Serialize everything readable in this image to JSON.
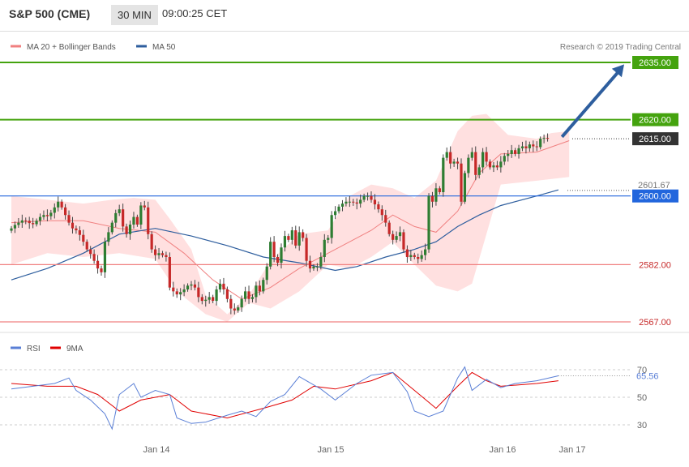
{
  "header": {
    "title": "S&P 500 (CME)",
    "interval": "30 MIN",
    "time": "09:00:25 CET"
  },
  "credit": "Research © 2019 Trading Central",
  "colors": {
    "bollinger_line": "#f08080",
    "bollinger_fill": "#ffe0e0",
    "ma50": "#2e5e9e",
    "candle_up": "#2e7d32",
    "candle_down": "#c62828",
    "resistance": "#44a30e",
    "pivot": "#2266dd",
    "support": "#f08080",
    "arrow": "#2e5e9e",
    "rsi": "#5a7fd6",
    "rsi_ma": "#e00000"
  },
  "chart_data": [
    {
      "type": "candlestick",
      "legend": [
        {
          "name": "MA 20 + Bollinger Bands",
          "color": "#f08080"
        },
        {
          "name": "MA 50",
          "color": "#2e5e9e"
        }
      ],
      "x_labels": [
        "Jan 14",
        "Jan 15",
        "Jan 16",
        "Jan 17"
      ],
      "ylim": [
        2565,
        2638
      ],
      "levels": [
        {
          "value": 2635.0,
          "label": "2635.00",
          "kind": "resistance"
        },
        {
          "value": 2620.0,
          "label": "2620.00",
          "kind": "resistance"
        },
        {
          "value": 2615.0,
          "label": "2615.00",
          "kind": "last"
        },
        {
          "value": 2601.67,
          "label": "2601.67",
          "kind": "pivot-note"
        },
        {
          "value": 2600.0,
          "label": "2600.00",
          "kind": "pivot"
        },
        {
          "value": 2582.0,
          "label": "2582.00",
          "kind": "support"
        },
        {
          "value": 2567.0,
          "label": "2567.00",
          "kind": "support"
        }
      ],
      "closes": [
        2591.5,
        2592.4,
        2593.0,
        2593.6,
        2593.5,
        2592.9,
        2592.6,
        2593.5,
        2594.5,
        2595.0,
        2594.7,
        2595.6,
        2597.0,
        2598.5,
        2597.0,
        2595.0,
        2593.0,
        2591.5,
        2591.0,
        2589.8,
        2588.0,
        2586.0,
        2584.8,
        2583.0,
        2581.0,
        2580.0,
        2588.0,
        2590.5,
        2593.0,
        2595.5,
        2596.5,
        2592.0,
        2590.0,
        2592.5,
        2594.5,
        2592.5,
        2597.5,
        2597.0,
        2590.0,
        2586.0,
        2584.5,
        2585.0,
        2584.5,
        2584.0,
        2576.0,
        2575.0,
        2574.2,
        2574.8,
        2575.5,
        2576.5,
        2576.8,
        2576.0,
        2573.5,
        2572.5,
        2572.8,
        2573.5,
        2572.5,
        2575.5,
        2577.0,
        2575.5,
        2573.0,
        2570.5,
        2570.0,
        2570.8,
        2573.0,
        2575.0,
        2573.0,
        2573.5,
        2576.5,
        2575.0,
        2578.0,
        2581.5,
        2588.0,
        2584.0,
        2582.5,
        2586.5,
        2589.5,
        2588.5,
        2591.0,
        2587.0,
        2590.5,
        2589.0,
        2583.0,
        2581.0,
        2581.5,
        2581.5,
        2584.0,
        2588.5,
        2589.0,
        2595.0,
        2596.0,
        2597.2,
        2598.0,
        2598.5,
        2598.5,
        2598.3,
        2598.0,
        2599.0,
        2600.0,
        2600.0,
        2599.0,
        2597.8,
        2596.5,
        2595.0,
        2593.0,
        2590.0,
        2588.5,
        2589.5,
        2590.5,
        2586.0,
        2584.0,
        2584.5,
        2584.0,
        2583.5,
        2584.5,
        2586.0,
        2600.0,
        2598.5,
        2602.0,
        2601.0,
        2610.0,
        2611.5,
        2608.5,
        2609.0,
        2608.5,
        2598.5,
        2606.0,
        2610.0,
        2611.5,
        2605.5,
        2607.5,
        2611.5,
        2609.0,
        2607.5,
        2608.0,
        2607.5,
        2609.0,
        2610.5,
        2611.0,
        2612.0,
        2611.0,
        2612.5,
        2613.0,
        2612.5,
        2613.5,
        2613.0,
        2612.8,
        2615.0,
        2615.2,
        2615.0
      ],
      "bollinger": {
        "upper_pts": [
          [
            0,
            2600.0
          ],
          [
            10,
            2599.0
          ],
          [
            20,
            2598.0
          ],
          [
            28,
            2599.0
          ],
          [
            34,
            2599.5
          ],
          [
            40,
            2599.0
          ],
          [
            44,
            2594.0
          ],
          [
            50,
            2586.0
          ],
          [
            54,
            2574.0
          ],
          [
            60,
            2569.0
          ],
          [
            66,
            2574.0
          ],
          [
            72,
            2583.0
          ],
          [
            80,
            2590.0
          ],
          [
            88,
            2591.0
          ],
          [
            94,
            2600.0
          ],
          [
            100,
            2603.0
          ],
          [
            106,
            2602.0
          ],
          [
            112,
            2599.5
          ],
          [
            118,
            2604.0
          ],
          [
            124,
            2617.0
          ],
          [
            128,
            2621.0
          ],
          [
            132,
            2621.5
          ],
          [
            138,
            2616.0
          ],
          [
            146,
            2615.0
          ],
          [
            150,
            2616.5
          ],
          [
            155,
            2617.0
          ]
        ],
        "lower_pts": [
          [
            0,
            2582.0
          ],
          [
            10,
            2585.0
          ],
          [
            20,
            2584.0
          ],
          [
            30,
            2585.0
          ],
          [
            40,
            2583.5
          ],
          [
            46,
            2575.0
          ],
          [
            54,
            2569.0
          ],
          [
            60,
            2567.0
          ],
          [
            66,
            2572.0
          ],
          [
            72,
            2570.5
          ],
          [
            80,
            2575.0
          ],
          [
            88,
            2582.0
          ],
          [
            94,
            2581.0
          ],
          [
            100,
            2584.0
          ],
          [
            106,
            2588.0
          ],
          [
            112,
            2582.0
          ],
          [
            118,
            2576.5
          ],
          [
            124,
            2575.0
          ],
          [
            128,
            2577.0
          ],
          [
            132,
            2590.0
          ],
          [
            136,
            2603.0
          ],
          [
            146,
            2604.0
          ],
          [
            155,
            2605.0
          ]
        ],
        "mid_pts": [
          [
            0,
            2593.0
          ],
          [
            10,
            2593.5
          ],
          [
            20,
            2593.5
          ],
          [
            30,
            2591.5
          ],
          [
            40,
            2590.5
          ],
          [
            48,
            2585.0
          ],
          [
            56,
            2578.0
          ],
          [
            64,
            2573.0
          ],
          [
            72,
            2576.0
          ],
          [
            80,
            2581.0
          ],
          [
            88,
            2585.0
          ],
          [
            94,
            2588.0
          ],
          [
            100,
            2591.0
          ],
          [
            106,
            2595.0
          ],
          [
            112,
            2592.0
          ],
          [
            118,
            2590.5
          ],
          [
            124,
            2596.0
          ],
          [
            130,
            2606.0
          ],
          [
            136,
            2611.0
          ],
          [
            146,
            2611.5
          ],
          [
            155,
            2614.5
          ]
        ]
      },
      "ma50_pts": [
        [
          0,
          2578.0
        ],
        [
          10,
          2581.0
        ],
        [
          20,
          2585.0
        ],
        [
          30,
          2590.0
        ],
        [
          40,
          2591.5
        ],
        [
          50,
          2589.5
        ],
        [
          60,
          2587.0
        ],
        [
          70,
          2584.0
        ],
        [
          80,
          2582.5
        ],
        [
          90,
          2580.5
        ],
        [
          96,
          2581.5
        ],
        [
          104,
          2584.0
        ],
        [
          112,
          2586.0
        ],
        [
          118,
          2588.0
        ],
        [
          124,
          2592.0
        ],
        [
          130,
          2595.0
        ],
        [
          136,
          2597.5
        ],
        [
          146,
          2600.0
        ],
        [
          152,
          2601.6
        ]
      ],
      "arrow": {
        "from": [
          153,
          2615.5
        ],
        "to": [
          166,
          2634.5
        ]
      }
    },
    {
      "type": "line",
      "legend": [
        {
          "name": "RSI",
          "color": "#5a7fd6"
        },
        {
          "name": "9MA",
          "color": "#e00000"
        }
      ],
      "ylim": [
        22,
        78
      ],
      "y_ticks": [
        30,
        50,
        70
      ],
      "last_rsi_label": "65.56",
      "rsi_pts": [
        [
          0,
          56
        ],
        [
          6,
          58
        ],
        [
          12,
          60
        ],
        [
          16,
          64
        ],
        [
          18,
          55
        ],
        [
          22,
          48
        ],
        [
          26,
          38
        ],
        [
          28,
          27
        ],
        [
          30,
          52
        ],
        [
          34,
          60
        ],
        [
          36,
          50
        ],
        [
          40,
          55
        ],
        [
          44,
          52
        ],
        [
          46,
          35
        ],
        [
          50,
          31
        ],
        [
          54,
          32
        ],
        [
          60,
          37
        ],
        [
          64,
          40
        ],
        [
          68,
          36
        ],
        [
          72,
          47
        ],
        [
          76,
          52
        ],
        [
          80,
          65
        ],
        [
          86,
          56
        ],
        [
          90,
          48
        ],
        [
          96,
          60
        ],
        [
          100,
          66
        ],
        [
          106,
          68
        ],
        [
          110,
          54
        ],
        [
          112,
          40
        ],
        [
          116,
          36
        ],
        [
          120,
          40
        ],
        [
          124,
          64
        ],
        [
          126,
          72
        ],
        [
          128,
          55
        ],
        [
          132,
          63
        ],
        [
          136,
          57
        ],
        [
          140,
          60
        ],
        [
          146,
          62
        ],
        [
          152,
          65.56
        ]
      ],
      "ma_pts": [
        [
          0,
          60
        ],
        [
          10,
          58
        ],
        [
          18,
          58
        ],
        [
          24,
          52
        ],
        [
          30,
          40
        ],
        [
          36,
          48
        ],
        [
          44,
          52
        ],
        [
          50,
          40
        ],
        [
          60,
          35
        ],
        [
          70,
          42
        ],
        [
          78,
          48
        ],
        [
          84,
          58
        ],
        [
          90,
          56
        ],
        [
          100,
          62
        ],
        [
          106,
          68
        ],
        [
          112,
          55
        ],
        [
          118,
          42
        ],
        [
          124,
          58
        ],
        [
          128,
          68
        ],
        [
          132,
          62
        ],
        [
          136,
          58
        ],
        [
          146,
          60
        ],
        [
          152,
          62
        ]
      ]
    }
  ]
}
